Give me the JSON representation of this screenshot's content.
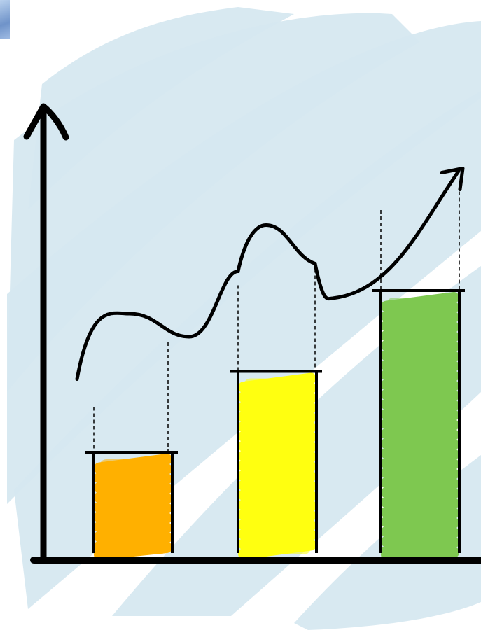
{
  "chart_data": {
    "type": "bar",
    "title": "",
    "xlabel": "",
    "ylabel": "",
    "categories": [
      "",
      "",
      ""
    ],
    "series": [
      {
        "values": [
          28,
          49,
          70
        ]
      }
    ],
    "trend_line": {
      "y": [
        47,
        64,
        58,
        75,
        87,
        77,
        68,
        101
      ]
    },
    "ylim": [
      0,
      120
    ],
    "grid": false,
    "legend": "none",
    "colors": {
      "bars": [
        "#ffb000",
        "#ffff10",
        "#7ec850"
      ],
      "background_strokes": "#d6e8f0",
      "ink": "#000000"
    },
    "icons": {
      "y_axis_arrow": "arrow-up-icon",
      "trend_arrow": "arrow-up-right-icon"
    }
  }
}
